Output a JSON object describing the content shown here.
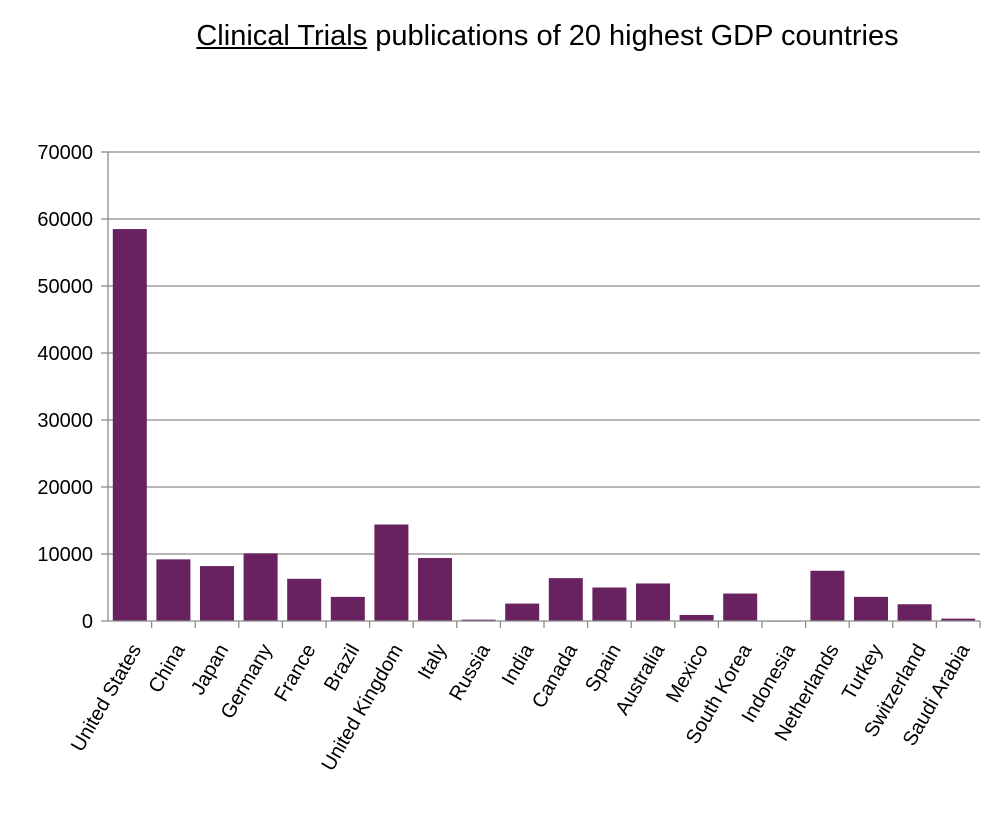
{
  "chart_data": {
    "type": "bar",
    "title_emphasis": "Clinical Trials",
    "title_rest": " publications of 20 highest GDP countries",
    "categories": [
      "United States",
      "China",
      "Japan",
      "Germany",
      "France",
      "Brazil",
      "United Kingdom",
      "Italy",
      "Russia",
      "India",
      "Canada",
      "Spain",
      "Australia",
      "Mexico",
      "South Korea",
      "Indonesia",
      "Netherlands",
      "Turkey",
      "Switzerland",
      "Saudi Arabia"
    ],
    "values": [
      58500,
      9200,
      8200,
      10100,
      6300,
      3600,
      14400,
      9400,
      200,
      2600,
      6400,
      5000,
      5600,
      900,
      4100,
      50,
      7500,
      3600,
      2500,
      350
    ],
    "xlabel": "",
    "ylabel": "",
    "ylim": [
      0,
      70000
    ],
    "yticks": [
      0,
      10000,
      20000,
      30000,
      40000,
      50000,
      60000,
      70000
    ],
    "grid": true,
    "legend": "none",
    "bar_color": "#68225f",
    "grid_color": "#8c8c8c"
  }
}
